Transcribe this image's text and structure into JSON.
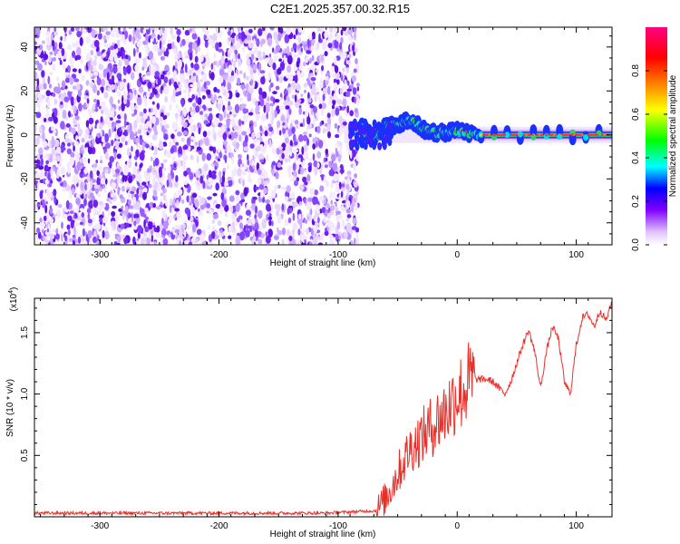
{
  "figure": {
    "title": "C2E1.2025.357.00.32.R15"
  },
  "chart_data": [
    {
      "type": "heatmap",
      "xlabel": "Height of straight line (km)",
      "ylabel": "Frequency (Hz)",
      "xlim": [
        -355,
        130
      ],
      "ylim": [
        -50,
        49
      ],
      "xticks": [
        -300,
        -200,
        -100,
        0,
        100
      ],
      "yticks": [
        -40,
        -20,
        0,
        20,
        40
      ],
      "noise_region_x": [
        -355,
        -83
      ],
      "signal": {
        "x_start": -100,
        "x_end": 130,
        "center_frequency": 0,
        "description_points": [
          {
            "x": -80,
            "freq": 3
          },
          {
            "x": -70,
            "freq": -2
          },
          {
            "x": -60,
            "freq": 4
          },
          {
            "x": -50,
            "freq": 5
          },
          {
            "x": -40,
            "freq": 7
          },
          {
            "x": -30,
            "freq": 3
          },
          {
            "x": -20,
            "freq": 1
          },
          {
            "x": -10,
            "freq": 1
          },
          {
            "x": 0,
            "freq": 2
          },
          {
            "x": 20,
            "freq": 0
          },
          {
            "x": 130,
            "freq": 0
          }
        ]
      },
      "colorbar": {
        "label": "Normalized spectral amplitude",
        "range": [
          0,
          1
        ],
        "ticks": [
          0.0,
          0.2,
          0.4,
          0.6,
          0.8
        ],
        "tick_labels": [
          "0.0",
          "0.2",
          "0.4",
          "0.6",
          "0.8"
        ],
        "colors": [
          "#ffffff",
          "#8000ff",
          "#0000ff",
          "#00ffff",
          "#00ff00",
          "#ffff00",
          "#ff8000",
          "#ff0000",
          "#ff0080"
        ]
      }
    },
    {
      "type": "line",
      "xlabel": "Height of straight line (km)",
      "ylabel": "SNR (10 * v/v)",
      "y_multiplier": "(x10",
      "y_multiplier_exp": "4",
      "y_multiplier_close": ")",
      "xlim": [
        -355,
        130
      ],
      "ylim": [
        0,
        1.78
      ],
      "xticks": [
        -300,
        -200,
        -100,
        0,
        100
      ],
      "yticks": [
        0.5,
        1.0,
        1.5
      ],
      "ytick_labels": [
        "0.5",
        "1.0",
        "1.5"
      ],
      "series": [
        {
          "color": "#e8302a",
          "x": [
            -355,
            -300,
            -200,
            -110,
            -68,
            -60,
            -50,
            -40,
            -30,
            -20,
            -10,
            0,
            5,
            10,
            15,
            20,
            25,
            30,
            35,
            40,
            45,
            50,
            55,
            60,
            65,
            70,
            75,
            80,
            85,
            90,
            95,
            100,
            105,
            110,
            115,
            120,
            125,
            130
          ],
          "y": [
            0.03,
            0.03,
            0.03,
            0.03,
            0.05,
            0.15,
            0.35,
            0.55,
            0.65,
            0.75,
            0.85,
            1.0,
            1.02,
            1.1,
            1.12,
            1.12,
            1.12,
            1.1,
            1.05,
            1.0,
            1.1,
            1.25,
            1.4,
            1.52,
            1.35,
            1.05,
            1.35,
            1.55,
            1.45,
            1.1,
            1.0,
            1.4,
            1.62,
            1.65,
            1.55,
            1.68,
            1.6,
            1.75
          ]
        }
      ]
    }
  ]
}
